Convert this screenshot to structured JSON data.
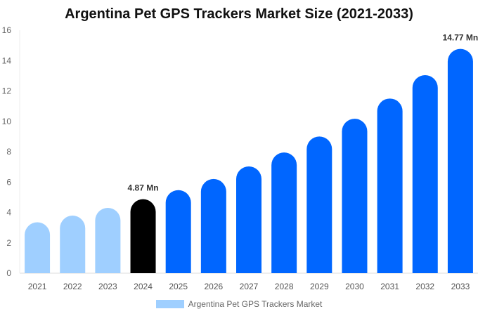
{
  "chart_data": {
    "type": "bar",
    "title": "Argentina Pet GPS Trackers Market Size (2021-2033)",
    "categories": [
      "2021",
      "2022",
      "2023",
      "2024",
      "2025",
      "2026",
      "2027",
      "2028",
      "2029",
      "2030",
      "2031",
      "2032",
      "2033"
    ],
    "series": [
      {
        "name": "Argentina Pet GPS Trackers Market",
        "values": [
          3.35,
          3.79,
          4.3,
          4.87,
          5.47,
          6.2,
          7.03,
          7.95,
          9.0,
          10.17,
          11.5,
          13.04,
          14.77
        ]
      }
    ],
    "data_labels": [
      {
        "category": "2024",
        "text": "4.87 Mn"
      },
      {
        "category": "2033",
        "text": "14.77 Mn"
      }
    ],
    "ylim": [
      0,
      16
    ],
    "yticks": [
      0,
      2,
      4,
      6,
      8,
      10,
      12,
      14,
      16
    ],
    "grid": false,
    "legend": "bottom",
    "colors": {
      "historical": "#9fcfff",
      "current": "#000000",
      "forecast": "#0066ff"
    }
  }
}
